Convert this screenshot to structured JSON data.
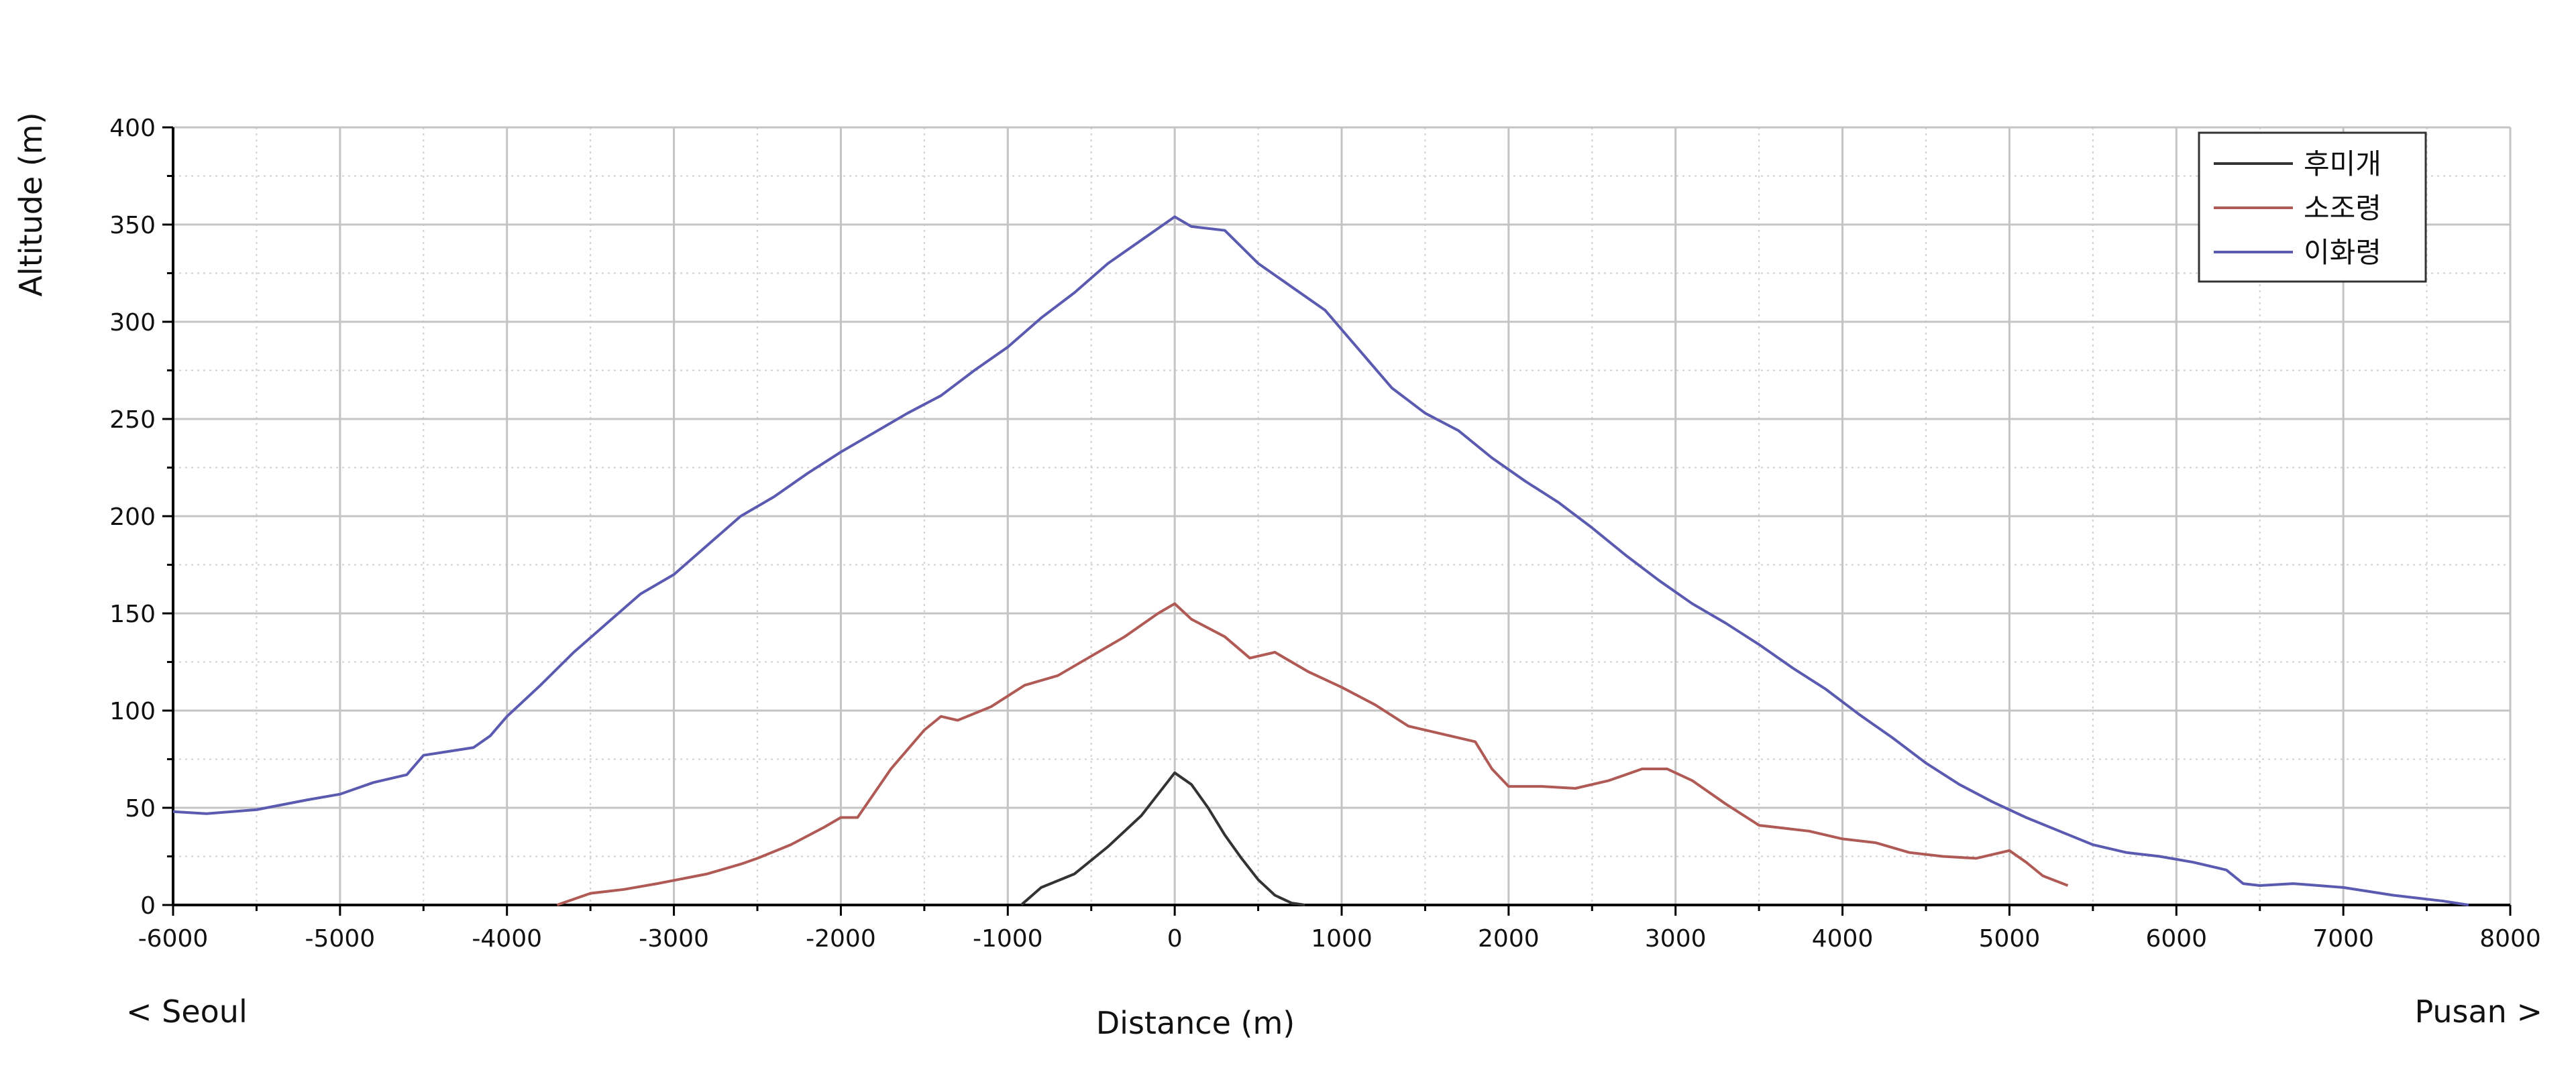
{
  "chart_data": {
    "type": "line",
    "title": "",
    "xlabel": "Distance (m)",
    "ylabel": "Altitude (m)",
    "left_direction_label": "< Seoul",
    "right_direction_label": "Pusan >",
    "xlim": [
      -6000,
      8000
    ],
    "ylim": [
      0,
      400
    ],
    "x_ticks": [
      -6000,
      -5000,
      -4000,
      -3000,
      -2000,
      -1000,
      0,
      1000,
      2000,
      3000,
      4000,
      5000,
      6000,
      7000,
      8000
    ],
    "y_ticks": [
      0,
      50,
      100,
      150,
      200,
      250,
      300,
      350,
      400
    ],
    "grid": true,
    "legend_position": "top-right",
    "series": [
      {
        "name": "후미개",
        "color": "#333333",
        "x": [
          -920,
          -800,
          -600,
          -400,
          -200,
          -100,
          0,
          100,
          200,
          300,
          400,
          500,
          600,
          700,
          780
        ],
        "y": [
          0,
          9,
          16,
          30,
          46,
          57,
          68,
          62,
          50,
          36,
          24,
          13,
          5,
          1,
          0
        ]
      },
      {
        "name": "소조령",
        "color": "#b05a55",
        "x": [
          -3700,
          -3500,
          -3300,
          -3100,
          -2800,
          -2600,
          -2500,
          -2300,
          -2100,
          -2000,
          -1900,
          -1700,
          -1500,
          -1400,
          -1300,
          -1100,
          -900,
          -700,
          -500,
          -300,
          -100,
          0,
          100,
          300,
          450,
          600,
          800,
          1000,
          1200,
          1400,
          1600,
          1800,
          1900,
          2000,
          2200,
          2400,
          2600,
          2800,
          2950,
          3100,
          3300,
          3500,
          3800,
          4000,
          4200,
          4400,
          4600,
          4800,
          5000,
          5100,
          5200,
          5350
        ],
        "y": [
          0,
          6,
          8,
          11,
          16,
          21,
          24,
          31,
          40,
          45,
          45,
          70,
          90,
          97,
          95,
          102,
          113,
          118,
          128,
          138,
          150,
          155,
          147,
          138,
          127,
          130,
          120,
          112,
          103,
          92,
          88,
          84,
          70,
          61,
          61,
          60,
          64,
          70,
          70,
          64,
          52,
          41,
          38,
          34,
          32,
          27,
          25,
          24,
          28,
          22,
          15,
          10
        ]
      },
      {
        "name": "이화령",
        "color": "#5a5ab0",
        "x": [
          -6000,
          -5800,
          -5500,
          -5200,
          -5000,
          -4800,
          -4600,
          -4500,
          -4200,
          -4100,
          -4000,
          -3800,
          -3600,
          -3400,
          -3200,
          -3000,
          -2800,
          -2600,
          -2400,
          -2200,
          -2000,
          -1800,
          -1600,
          -1400,
          -1200,
          -1000,
          -800,
          -600,
          -400,
          -200,
          0,
          100,
          300,
          500,
          700,
          900,
          1100,
          1300,
          1500,
          1700,
          1900,
          2100,
          2300,
          2500,
          2700,
          2900,
          3100,
          3300,
          3500,
          3700,
          3900,
          4100,
          4300,
          4500,
          4700,
          4900,
          5100,
          5300,
          5500,
          5700,
          5900,
          6100,
          6300,
          6400,
          6500,
          6700,
          7000,
          7300,
          7600,
          7750
        ],
        "y": [
          48,
          47,
          49,
          54,
          57,
          63,
          67,
          77,
          81,
          87,
          97,
          113,
          130,
          145,
          160,
          170,
          185,
          200,
          210,
          222,
          233,
          243,
          253,
          262,
          275,
          287,
          302,
          315,
          330,
          342,
          354,
          349,
          347,
          330,
          318,
          306,
          286,
          266,
          253,
          244,
          230,
          218,
          207,
          194,
          180,
          167,
          155,
          145,
          134,
          122,
          111,
          98,
          86,
          73,
          62,
          53,
          45,
          38,
          31,
          27,
          25,
          22,
          18,
          11,
          10,
          11,
          9,
          5,
          2,
          0
        ]
      }
    ]
  }
}
